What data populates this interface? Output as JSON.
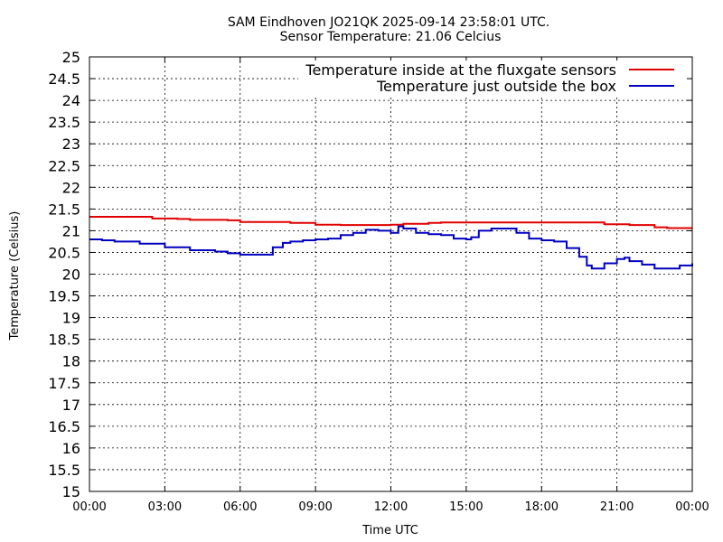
{
  "chart_data": {
    "type": "line",
    "title": "SAM Eindhoven JO21QK 2025-09-14 23:58:01 UTC.",
    "subtitle": "Sensor Temperature: 21.06 Celcius",
    "xlabel": "Time UTC",
    "ylabel": "Temperature (Celsius)",
    "xlim": [
      0,
      24
    ],
    "ylim": [
      15,
      25
    ],
    "x_ticks": [
      "00:00",
      "03:00",
      "06:00",
      "09:00",
      "12:00",
      "15:00",
      "18:00",
      "21:00",
      "00:00"
    ],
    "y_ticks": [
      "15",
      "15.5",
      "16",
      "16.5",
      "17",
      "17.5",
      "18",
      "18.5",
      "19",
      "19.5",
      "20",
      "20.5",
      "21",
      "21.5",
      "22",
      "22.5",
      "23",
      "23.5",
      "24",
      "24.5",
      "25"
    ],
    "grid": true,
    "legend_position": "top-right",
    "series": [
      {
        "name": "Temperature inside at the fluxgate sensors",
        "color": "#e00000",
        "x": [
          0,
          2.0,
          2.5,
          3.5,
          4.0,
          5.5,
          6.0,
          8.0,
          9.0,
          10.0,
          11.5,
          12.0,
          12.5,
          13.5,
          14.0,
          15.0,
          18.0,
          20.0,
          20.5,
          21.5,
          22.3,
          22.5,
          23.0,
          24.0
        ],
        "y": [
          21.32,
          21.32,
          21.28,
          21.27,
          21.25,
          21.24,
          21.2,
          21.18,
          21.14,
          21.13,
          21.13,
          21.14,
          21.16,
          21.18,
          21.19,
          21.19,
          21.19,
          21.19,
          21.15,
          21.13,
          21.13,
          21.08,
          21.06,
          21.06
        ]
      },
      {
        "name": "Temperature just outside the box",
        "color": "#0000c0",
        "x": [
          0,
          0.5,
          1.0,
          2.0,
          3.0,
          4.0,
          5.0,
          5.5,
          6.0,
          7.0,
          7.3,
          7.7,
          8.0,
          8.5,
          9.0,
          9.5,
          10.0,
          10.5,
          11.0,
          11.5,
          12.0,
          12.3,
          12.5,
          13.0,
          13.5,
          14.0,
          14.5,
          15.0,
          15.2,
          15.5,
          16.0,
          16.5,
          17.0,
          17.5,
          18.0,
          18.5,
          19.0,
          19.5,
          19.8,
          20.0,
          20.5,
          21.0,
          21.3,
          21.5,
          22.0,
          22.5,
          23.0,
          23.5,
          24.0
        ],
        "y": [
          20.8,
          20.78,
          20.75,
          20.7,
          20.62,
          20.55,
          20.52,
          20.48,
          20.45,
          20.45,
          20.62,
          20.72,
          20.75,
          20.78,
          20.8,
          20.82,
          20.9,
          20.95,
          21.02,
          21.0,
          20.95,
          21.1,
          21.05,
          20.95,
          20.92,
          20.9,
          20.82,
          20.8,
          20.85,
          21.0,
          21.05,
          21.05,
          20.95,
          20.82,
          20.78,
          20.75,
          20.6,
          20.4,
          20.2,
          20.13,
          20.25,
          20.35,
          20.38,
          20.3,
          20.22,
          20.13,
          20.13,
          20.2,
          20.25
        ]
      }
    ]
  }
}
